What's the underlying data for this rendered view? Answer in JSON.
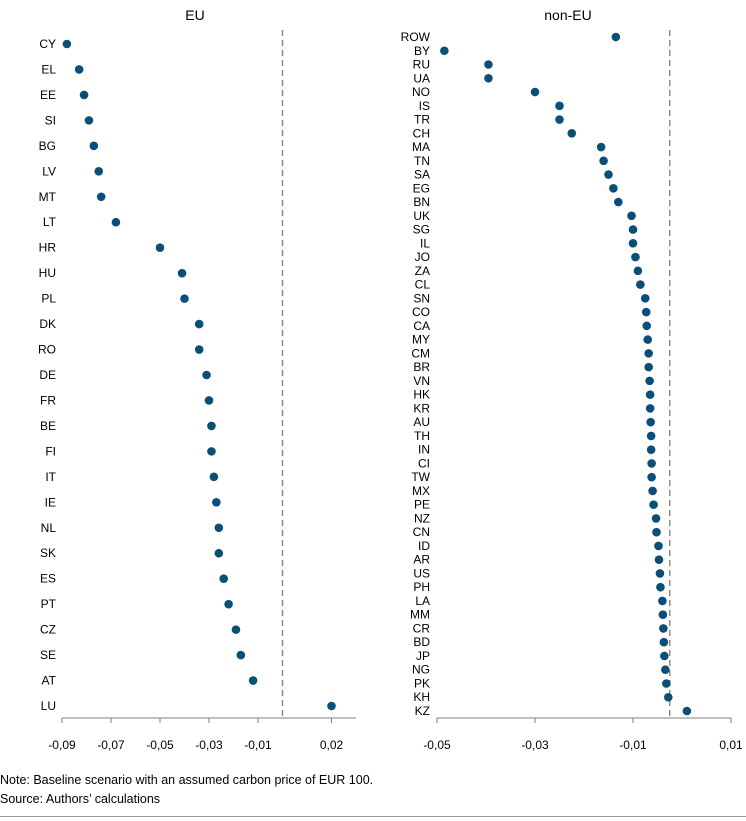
{
  "chart_data": [
    {
      "type": "scatter",
      "title": "EU",
      "orientation": "horizontal",
      "categories": [
        "CY",
        "EL",
        "EE",
        "SI",
        "BG",
        "LV",
        "MT",
        "LT",
        "HR",
        "HU",
        "PL",
        "DK",
        "RO",
        "DE",
        "FR",
        "BE",
        "FI",
        "IT",
        "IE",
        "NL",
        "SK",
        "ES",
        "PT",
        "CZ",
        "SE",
        "AT",
        "LU"
      ],
      "values": [
        -0.088,
        -0.083,
        -0.081,
        -0.079,
        -0.077,
        -0.075,
        -0.074,
        -0.068,
        -0.05,
        -0.041,
        -0.04,
        -0.034,
        -0.034,
        -0.031,
        -0.03,
        -0.029,
        -0.029,
        -0.028,
        -0.027,
        -0.026,
        -0.026,
        -0.024,
        -0.022,
        -0.019,
        -0.017,
        -0.012,
        0.02
      ],
      "xlim": [
        -0.09,
        0.03
      ],
      "xticks": [
        "-0,09",
        "-0,07",
        "-0,05",
        "-0,03",
        "-0,01",
        "0,02"
      ],
      "xtick_values": [
        -0.09,
        -0.07,
        -0.05,
        -0.03,
        -0.01,
        0.02
      ],
      "reference_line": 0.0,
      "marker_color": "#0b4f79",
      "reference_line_color": "#8c8c8c",
      "axis_color": "#7f7f7f",
      "grid": false
    },
    {
      "type": "scatter",
      "title": "non-EU",
      "orientation": "horizontal",
      "categories": [
        "ROW",
        "BY",
        "RU",
        "UA",
        "NO",
        "IS",
        "TR",
        "CH",
        "MA",
        "TN",
        "SA",
        "EG",
        "BN",
        "UK",
        "SG",
        "IL",
        "JO",
        "ZA",
        "CL",
        "SN",
        "CO",
        "CA",
        "MY",
        "CM",
        "BR",
        "VN",
        "HK",
        "KR",
        "AU",
        "TH",
        "IN",
        "CI",
        "TW",
        "MX",
        "PE",
        "NZ",
        "CN",
        "ID",
        "AR",
        "US",
        "PH",
        "LA",
        "MM",
        "CR",
        "BD",
        "JP",
        "NG",
        "PK",
        "KH",
        "KZ"
      ],
      "values": [
        -0.0135,
        -0.0485,
        -0.0395,
        -0.0395,
        -0.03,
        -0.025,
        -0.025,
        -0.0225,
        -0.0165,
        -0.016,
        -0.015,
        -0.014,
        -0.013,
        -0.0103,
        -0.01,
        -0.01,
        -0.0095,
        -0.009,
        -0.0085,
        -0.0075,
        -0.0073,
        -0.0072,
        -0.007,
        -0.0068,
        -0.0068,
        -0.0066,
        -0.0065,
        -0.0065,
        -0.0064,
        -0.0063,
        -0.0063,
        -0.0062,
        -0.0062,
        -0.006,
        -0.0058,
        -0.0053,
        -0.0052,
        -0.0048,
        -0.0047,
        -0.0045,
        -0.0044,
        -0.004,
        -0.0039,
        -0.0038,
        -0.0037,
        -0.0036,
        -0.0034,
        -0.0032,
        -0.0028,
        0.001
      ],
      "xlim": [
        -0.05,
        0.01
      ],
      "xticks": [
        "-0,05",
        "-0,03",
        "-0,01",
        "0,01"
      ],
      "xtick_values": [
        -0.05,
        -0.03,
        -0.01,
        0.01
      ],
      "reference_line": -0.0025,
      "marker_color": "#0b4f79",
      "reference_line_color": "#8c8c8c",
      "axis_color": "#7f7f7f",
      "grid": false
    }
  ],
  "footer": {
    "note": "Note: Baseline scenario with an assumed carbon price of EUR 100.",
    "source": "Source: Authors’ calculations"
  }
}
